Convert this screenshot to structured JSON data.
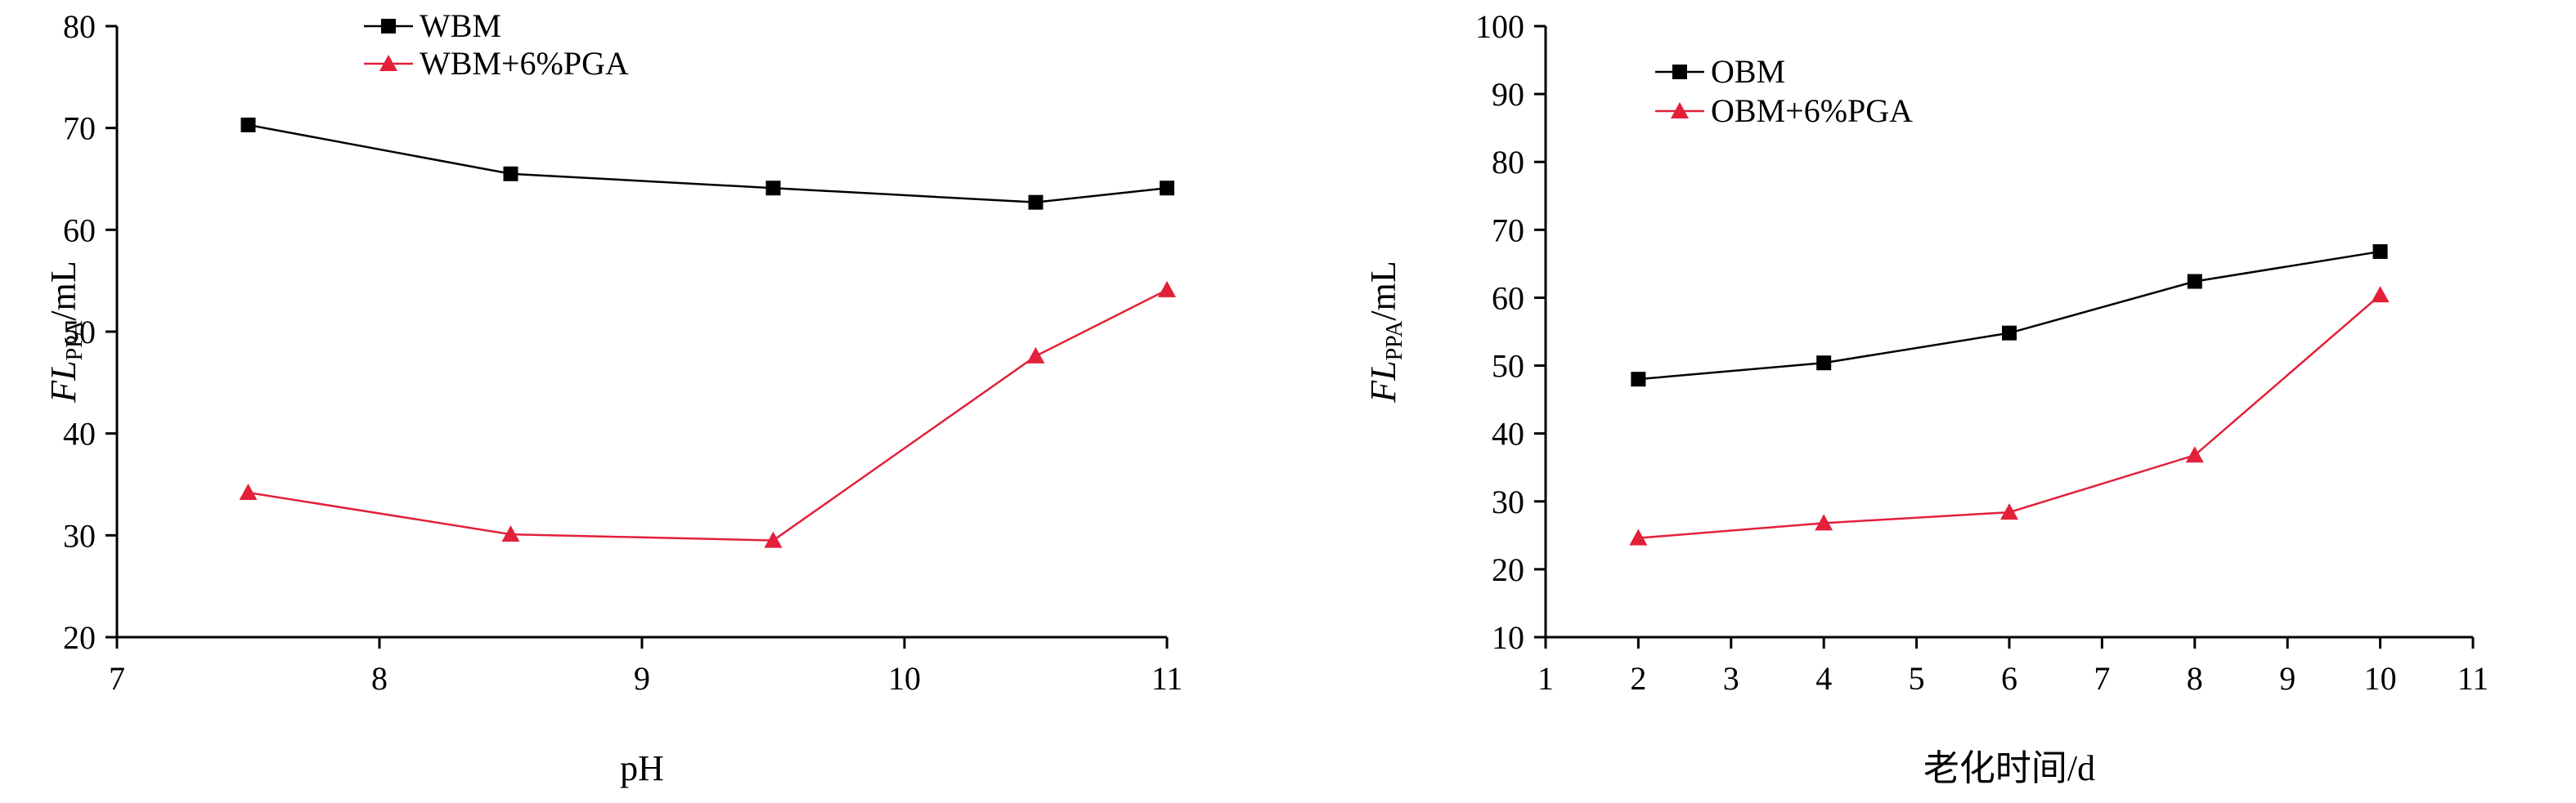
{
  "colors": {
    "series_a": "#000000",
    "series_b": "#e3203a",
    "axis": "#000000"
  },
  "chart_data": [
    {
      "type": "line",
      "title": "",
      "xlabel": "pH",
      "ylabel": {
        "italic": "FL",
        "sub": "PPA",
        "unit": "/mL"
      },
      "xlim": [
        7,
        11
      ],
      "ylim": [
        20,
        80
      ],
      "xticks": [
        "7",
        "8",
        "9",
        "10",
        "11"
      ],
      "yticks": [
        "20",
        "30",
        "40",
        "50",
        "60",
        "70",
        "80"
      ],
      "legend_position": "top-left",
      "grid": false,
      "series": [
        {
          "name": "WBM",
          "marker": "square",
          "x": [
            7.5,
            8.5,
            9.5,
            10.5,
            11
          ],
          "y": [
            70.3,
            65.5,
            64.1,
            62.7,
            64.1
          ]
        },
        {
          "name": "WBM+6%PGA",
          "marker": "triangle",
          "x": [
            7.5,
            8.5,
            9.5,
            10.5,
            11
          ],
          "y": [
            34.2,
            30.1,
            29.5,
            47.6,
            54.1
          ]
        }
      ]
    },
    {
      "type": "line",
      "title": "",
      "xlabel": "老化时间/d",
      "ylabel": {
        "italic": "FL",
        "sub": "PPA",
        "unit": "/mL"
      },
      "xlim": [
        1,
        11
      ],
      "ylim": [
        10,
        100
      ],
      "xticks": [
        "1",
        "2",
        "3",
        "4",
        "5",
        "6",
        "7",
        "8",
        "9",
        "10",
        "11"
      ],
      "yticks": [
        "10",
        "20",
        "30",
        "40",
        "50",
        "60",
        "70",
        "80",
        "90",
        "100"
      ],
      "legend_position": "top-left",
      "grid": false,
      "series": [
        {
          "name": "OBM",
          "marker": "square",
          "x": [
            2,
            4,
            6,
            8,
            10
          ],
          "y": [
            48.0,
            50.4,
            54.8,
            62.4,
            66.8
          ]
        },
        {
          "name": "OBM+6%PGA",
          "marker": "triangle",
          "x": [
            2,
            4,
            6,
            8,
            10
          ],
          "y": [
            24.6,
            26.8,
            28.4,
            36.8,
            60.4
          ]
        }
      ]
    }
  ]
}
